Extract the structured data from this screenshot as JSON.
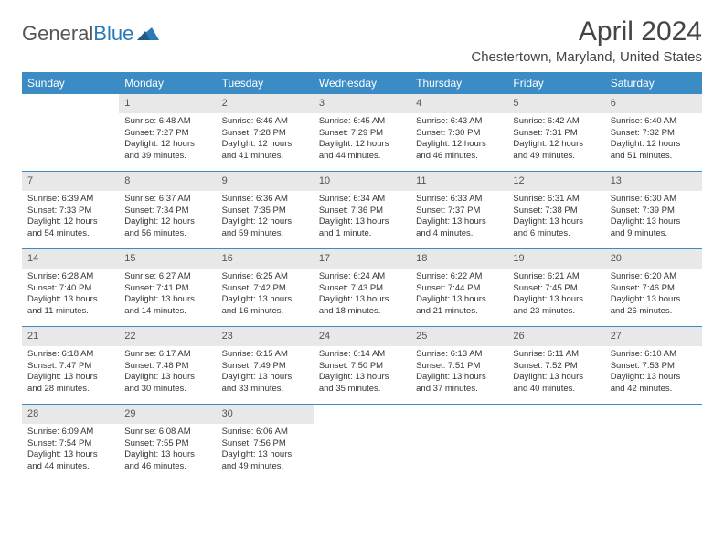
{
  "logo": {
    "part1": "General",
    "part2": "Blue"
  },
  "title": "April 2024",
  "location": "Chestertown, Maryland, United States",
  "colors": {
    "header_bg": "#3b8bc4",
    "header_text": "#ffffff",
    "daynum_bg": "#e8e8e8",
    "week_border": "#3b8bc4",
    "text": "#333333",
    "logo_blue": "#2a7ab8"
  },
  "dayNames": [
    "Sunday",
    "Monday",
    "Tuesday",
    "Wednesday",
    "Thursday",
    "Friday",
    "Saturday"
  ],
  "weeks": [
    [
      null,
      {
        "n": "1",
        "sr": "Sunrise: 6:48 AM",
        "ss": "Sunset: 7:27 PM",
        "d1": "Daylight: 12 hours",
        "d2": "and 39 minutes."
      },
      {
        "n": "2",
        "sr": "Sunrise: 6:46 AM",
        "ss": "Sunset: 7:28 PM",
        "d1": "Daylight: 12 hours",
        "d2": "and 41 minutes."
      },
      {
        "n": "3",
        "sr": "Sunrise: 6:45 AM",
        "ss": "Sunset: 7:29 PM",
        "d1": "Daylight: 12 hours",
        "d2": "and 44 minutes."
      },
      {
        "n": "4",
        "sr": "Sunrise: 6:43 AM",
        "ss": "Sunset: 7:30 PM",
        "d1": "Daylight: 12 hours",
        "d2": "and 46 minutes."
      },
      {
        "n": "5",
        "sr": "Sunrise: 6:42 AM",
        "ss": "Sunset: 7:31 PM",
        "d1": "Daylight: 12 hours",
        "d2": "and 49 minutes."
      },
      {
        "n": "6",
        "sr": "Sunrise: 6:40 AM",
        "ss": "Sunset: 7:32 PM",
        "d1": "Daylight: 12 hours",
        "d2": "and 51 minutes."
      }
    ],
    [
      {
        "n": "7",
        "sr": "Sunrise: 6:39 AM",
        "ss": "Sunset: 7:33 PM",
        "d1": "Daylight: 12 hours",
        "d2": "and 54 minutes."
      },
      {
        "n": "8",
        "sr": "Sunrise: 6:37 AM",
        "ss": "Sunset: 7:34 PM",
        "d1": "Daylight: 12 hours",
        "d2": "and 56 minutes."
      },
      {
        "n": "9",
        "sr": "Sunrise: 6:36 AM",
        "ss": "Sunset: 7:35 PM",
        "d1": "Daylight: 12 hours",
        "d2": "and 59 minutes."
      },
      {
        "n": "10",
        "sr": "Sunrise: 6:34 AM",
        "ss": "Sunset: 7:36 PM",
        "d1": "Daylight: 13 hours",
        "d2": "and 1 minute."
      },
      {
        "n": "11",
        "sr": "Sunrise: 6:33 AM",
        "ss": "Sunset: 7:37 PM",
        "d1": "Daylight: 13 hours",
        "d2": "and 4 minutes."
      },
      {
        "n": "12",
        "sr": "Sunrise: 6:31 AM",
        "ss": "Sunset: 7:38 PM",
        "d1": "Daylight: 13 hours",
        "d2": "and 6 minutes."
      },
      {
        "n": "13",
        "sr": "Sunrise: 6:30 AM",
        "ss": "Sunset: 7:39 PM",
        "d1": "Daylight: 13 hours",
        "d2": "and 9 minutes."
      }
    ],
    [
      {
        "n": "14",
        "sr": "Sunrise: 6:28 AM",
        "ss": "Sunset: 7:40 PM",
        "d1": "Daylight: 13 hours",
        "d2": "and 11 minutes."
      },
      {
        "n": "15",
        "sr": "Sunrise: 6:27 AM",
        "ss": "Sunset: 7:41 PM",
        "d1": "Daylight: 13 hours",
        "d2": "and 14 minutes."
      },
      {
        "n": "16",
        "sr": "Sunrise: 6:25 AM",
        "ss": "Sunset: 7:42 PM",
        "d1": "Daylight: 13 hours",
        "d2": "and 16 minutes."
      },
      {
        "n": "17",
        "sr": "Sunrise: 6:24 AM",
        "ss": "Sunset: 7:43 PM",
        "d1": "Daylight: 13 hours",
        "d2": "and 18 minutes."
      },
      {
        "n": "18",
        "sr": "Sunrise: 6:22 AM",
        "ss": "Sunset: 7:44 PM",
        "d1": "Daylight: 13 hours",
        "d2": "and 21 minutes."
      },
      {
        "n": "19",
        "sr": "Sunrise: 6:21 AM",
        "ss": "Sunset: 7:45 PM",
        "d1": "Daylight: 13 hours",
        "d2": "and 23 minutes."
      },
      {
        "n": "20",
        "sr": "Sunrise: 6:20 AM",
        "ss": "Sunset: 7:46 PM",
        "d1": "Daylight: 13 hours",
        "d2": "and 26 minutes."
      }
    ],
    [
      {
        "n": "21",
        "sr": "Sunrise: 6:18 AM",
        "ss": "Sunset: 7:47 PM",
        "d1": "Daylight: 13 hours",
        "d2": "and 28 minutes."
      },
      {
        "n": "22",
        "sr": "Sunrise: 6:17 AM",
        "ss": "Sunset: 7:48 PM",
        "d1": "Daylight: 13 hours",
        "d2": "and 30 minutes."
      },
      {
        "n": "23",
        "sr": "Sunrise: 6:15 AM",
        "ss": "Sunset: 7:49 PM",
        "d1": "Daylight: 13 hours",
        "d2": "and 33 minutes."
      },
      {
        "n": "24",
        "sr": "Sunrise: 6:14 AM",
        "ss": "Sunset: 7:50 PM",
        "d1": "Daylight: 13 hours",
        "d2": "and 35 minutes."
      },
      {
        "n": "25",
        "sr": "Sunrise: 6:13 AM",
        "ss": "Sunset: 7:51 PM",
        "d1": "Daylight: 13 hours",
        "d2": "and 37 minutes."
      },
      {
        "n": "26",
        "sr": "Sunrise: 6:11 AM",
        "ss": "Sunset: 7:52 PM",
        "d1": "Daylight: 13 hours",
        "d2": "and 40 minutes."
      },
      {
        "n": "27",
        "sr": "Sunrise: 6:10 AM",
        "ss": "Sunset: 7:53 PM",
        "d1": "Daylight: 13 hours",
        "d2": "and 42 minutes."
      }
    ],
    [
      {
        "n": "28",
        "sr": "Sunrise: 6:09 AM",
        "ss": "Sunset: 7:54 PM",
        "d1": "Daylight: 13 hours",
        "d2": "and 44 minutes."
      },
      {
        "n": "29",
        "sr": "Sunrise: 6:08 AM",
        "ss": "Sunset: 7:55 PM",
        "d1": "Daylight: 13 hours",
        "d2": "and 46 minutes."
      },
      {
        "n": "30",
        "sr": "Sunrise: 6:06 AM",
        "ss": "Sunset: 7:56 PM",
        "d1": "Daylight: 13 hours",
        "d2": "and 49 minutes."
      },
      null,
      null,
      null,
      null
    ]
  ]
}
